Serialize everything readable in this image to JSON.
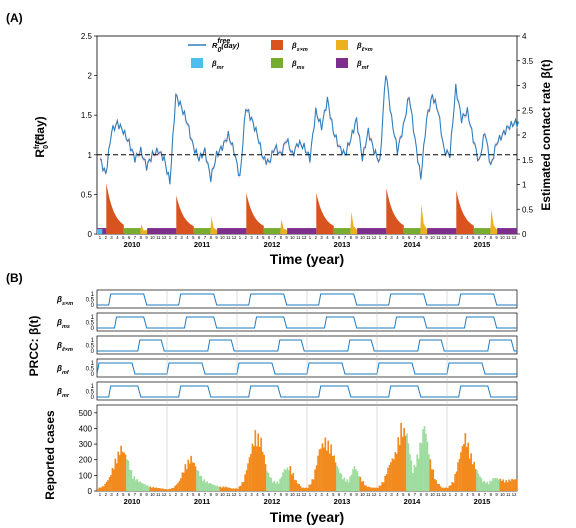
{
  "figure": {
    "panel_a_label": "(A)",
    "panel_b_label": "(B)",
    "xlabel": "Time (year)",
    "years": [
      "2010",
      "2011",
      "2012",
      "2013",
      "2014",
      "2015"
    ],
    "months": [
      "1",
      "2",
      "3",
      "4",
      "5",
      "6",
      "7",
      "8",
      "9",
      "10",
      "11",
      "12"
    ],
    "colors": {
      "r0": "#2f7fbf",
      "sxm": "#d9531e",
      "lxm": "#edb120",
      "mr": "#4dbeee",
      "ms": "#77ac30",
      "mf": "#7e2f8e",
      "cases_orange": "#f28a1e",
      "cases_green": "#9fdc9f",
      "prcc": "#1f7bc1"
    }
  },
  "chart_data": [
    {
      "type": "line",
      "panel": "A",
      "ylabel_left": "R0free(day)",
      "ylabel_left_parts": {
        "base": "R",
        "sub": "0",
        "sup": "free",
        "tail": "(day)"
      },
      "ylabel_right": "Estimated contact rate β(t)",
      "ylim_left": [
        0,
        2.5
      ],
      "yticks_left": [
        "0",
        "0.5",
        "1",
        "1.5",
        "2",
        "2.5"
      ],
      "ylim_right": [
        0,
        4
      ],
      "yticks_right": [
        "0",
        "0.5",
        "1",
        "1.5",
        "2",
        "2.5",
        "3",
        "3.5",
        "4"
      ],
      "reference_line": 1,
      "legend": [
        {
          "key": "r0",
          "label": "R0free(day)"
        },
        {
          "key": "sxm",
          "label": "β s×m"
        },
        {
          "key": "lxm",
          "label": "β ℓ×m"
        },
        {
          "key": "mr",
          "label": "β mr"
        },
        {
          "key": "ms",
          "label": "β ms"
        },
        {
          "key": "mf",
          "label": "β mf"
        }
      ],
      "legend_parts": [
        {
          "key": "r0",
          "base": "R",
          "sub": "0",
          "sup": "free",
          "tail": "(day)"
        },
        {
          "key": "sxm",
          "base": "β",
          "sub": "s×m"
        },
        {
          "key": "lxm",
          "base": "β",
          "sub": "ℓ×m"
        },
        {
          "key": "mr",
          "base": "β",
          "sub": "mr"
        },
        {
          "key": "ms",
          "base": "β",
          "sub": "ms"
        },
        {
          "key": "mf",
          "base": "β",
          "sub": "mf"
        }
      ],
      "series_r0_monthly": [
        {
          "year": "2010",
          "values": [
            0.95,
            0.75,
            1.3,
            1.4,
            1.3,
            1.15,
            0.95,
            1.05,
            0.85,
            1.0,
            1.05,
            0.95
          ]
        },
        {
          "year": "2011",
          "values": [
            0.65,
            1.75,
            1.6,
            1.4,
            1.1,
            0.95,
            1.05,
            0.7,
            1.0,
            1.1,
            1.25,
            1.05
          ]
        },
        {
          "year": "2012",
          "values": [
            0.7,
            1.6,
            1.45,
            1.25,
            0.95,
            0.9,
            1.1,
            1.0,
            1.2,
            1.0,
            1.15,
            1.1
          ]
        },
        {
          "year": "2013",
          "values": [
            0.95,
            1.55,
            1.35,
            1.7,
            1.3,
            1.1,
            1.0,
            1.2,
            1.45,
            0.95,
            1.3,
            1.05
          ]
        },
        {
          "year": "2014",
          "values": [
            0.9,
            2.05,
            1.45,
            1.05,
            1.35,
            1.75,
            1.2,
            0.7,
            1.45,
            1.75,
            1.55,
            1.05
          ]
        },
        {
          "year": "2015",
          "values": [
            1.0,
            1.85,
            1.45,
            1.55,
            1.2,
            0.9,
            1.3,
            0.85,
            1.15,
            1.25,
            1.35,
            1.4
          ]
        }
      ],
      "contact_rate_bars": {
        "description_levels": "approximate β(t) on right axis",
        "per_year": [
          {
            "year": "2010",
            "sxm_peak": 0.95,
            "lxm_peak": 0.2,
            "ms": 0.12,
            "mf": 0.12,
            "mr": 0.1
          },
          {
            "year": "2011",
            "sxm_peak": 0.7,
            "lxm_peak": 0.35,
            "ms": 0.12,
            "mf": 0.12,
            "mr": 0.1
          },
          {
            "year": "2012",
            "sxm_peak": 0.75,
            "lxm_peak": 0.3,
            "ms": 0.12,
            "mf": 0.12,
            "mr": 0.1
          },
          {
            "year": "2013",
            "sxm_peak": 0.75,
            "lxm_peak": 0.45,
            "ms": 0.12,
            "mf": 0.12,
            "mr": 0.1
          },
          {
            "year": "2014",
            "sxm_peak": 0.85,
            "lxm_peak": 0.6,
            "ms": 0.12,
            "mf": 0.12,
            "mr": 0.1
          },
          {
            "year": "2015",
            "sxm_peak": 0.8,
            "lxm_peak": 0.5,
            "ms": 0.12,
            "mf": 0.12,
            "mr": 0.1
          }
        ]
      }
    },
    {
      "type": "line",
      "panel": "B",
      "ylabel": "PRCC: β(t)",
      "rows": [
        {
          "key": "sxm",
          "label": "β s×m",
          "base": "β",
          "sub": "s×m",
          "high_months": [
            3,
            9
          ]
        },
        {
          "key": "ms",
          "label": "β ms",
          "base": "β",
          "sub": "ms",
          "high_months": [
            4,
            9
          ]
        },
        {
          "key": "lxm",
          "label": "β ℓ×m",
          "base": "β",
          "sub": "ℓ×m",
          "high_months": [
            8,
            12
          ]
        },
        {
          "key": "mf",
          "label": "β mf",
          "base": "β",
          "sub": "mf",
          "high_months": [
            1,
            7
          ]
        },
        {
          "key": "mr",
          "label": "β mr",
          "base": "β",
          "sub": "mr",
          "high_months": [
            3,
            8
          ]
        }
      ],
      "yticks": [
        "0",
        "0.5",
        "1"
      ]
    },
    {
      "type": "area",
      "panel": "B",
      "ylabel": "Reported cases",
      "ylim": [
        0,
        550
      ],
      "yticks": [
        "0",
        "100",
        "200",
        "300",
        "400",
        "500"
      ],
      "cases_monthly": [
        {
          "year": "2010",
          "values": [
            15,
            30,
            80,
            180,
            260,
            200,
            90,
            60,
            40,
            25,
            20,
            15
          ]
        },
        {
          "year": "2011",
          "values": [
            10,
            20,
            60,
            150,
            200,
            130,
            70,
            50,
            35,
            25,
            25,
            15
          ]
        },
        {
          "year": "2012",
          "values": [
            15,
            60,
            200,
            340,
            300,
            120,
            60,
            50,
            130,
            140,
            60,
            20
          ]
        },
        {
          "year": "2013",
          "values": [
            20,
            80,
            250,
            300,
            260,
            150,
            80,
            60,
            150,
            80,
            30,
            20
          ]
        },
        {
          "year": "2014",
          "values": [
            20,
            60,
            160,
            220,
            380,
            340,
            120,
            230,
            400,
            180,
            60,
            20
          ]
        },
        {
          "year": "2015",
          "values": [
            20,
            60,
            200,
            330,
            210,
            120,
            60,
            50,
            80,
            70,
            60,
            70
          ]
        }
      ]
    }
  ]
}
